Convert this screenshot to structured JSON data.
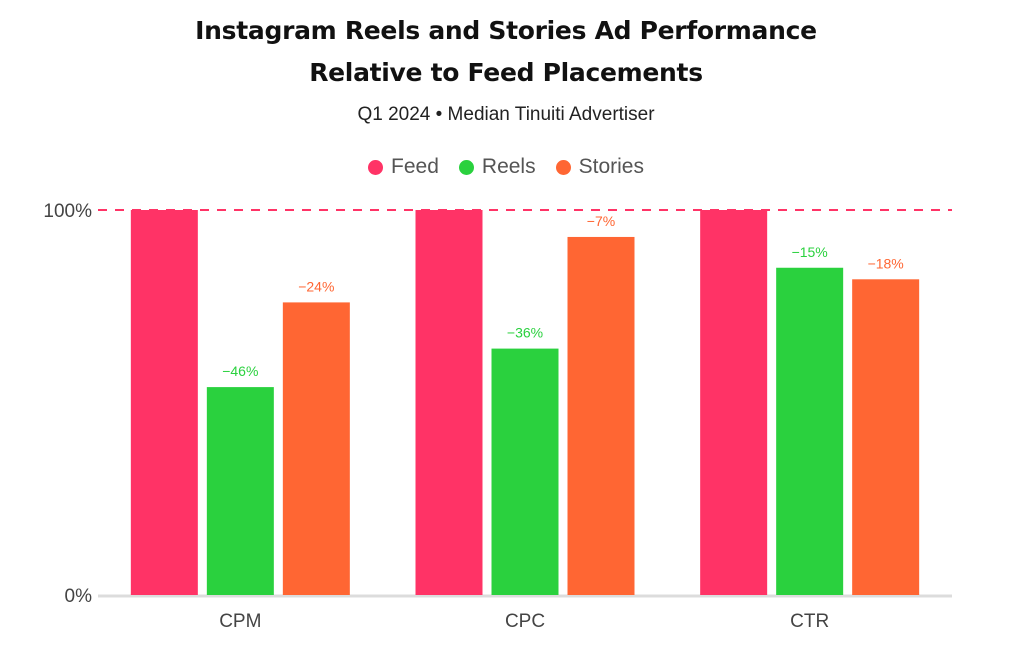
{
  "chart_data": {
    "type": "bar",
    "title": "Instagram Reels and Stories Ad Performance Relative to Feed Placements",
    "title_lines": [
      "Instagram Reels and Stories Ad Performance",
      "Relative to Feed Placements"
    ],
    "subtitle": "Q1 2024 • Median Tinuiti Advertiser",
    "xlabel": "",
    "ylabel": "",
    "ylim": [
      0,
      100
    ],
    "yticks": [
      {
        "value": 0,
        "label": "0%"
      },
      {
        "value": 100,
        "label": "100%"
      }
    ],
    "reference_line": {
      "value": 100,
      "style": "dashed",
      "color": "#FF3366"
    },
    "categories": [
      "CPM",
      "CPC",
      "CTR"
    ],
    "series": [
      {
        "name": "Feed",
        "color": "#FF3366",
        "values": [
          100,
          100,
          100
        ],
        "labels": [
          "",
          "",
          ""
        ]
      },
      {
        "name": "Reels",
        "color": "#2AD13E",
        "values": [
          54,
          64,
          85
        ],
        "labels": [
          "−46%",
          "−36%",
          "−15%"
        ]
      },
      {
        "name": "Stories",
        "color": "#FF6633",
        "values": [
          76,
          93,
          82
        ],
        "labels": [
          "−24%",
          "−7%",
          "−18%"
        ]
      }
    ],
    "legend": {
      "position": "top-center"
    },
    "grid": false
  }
}
